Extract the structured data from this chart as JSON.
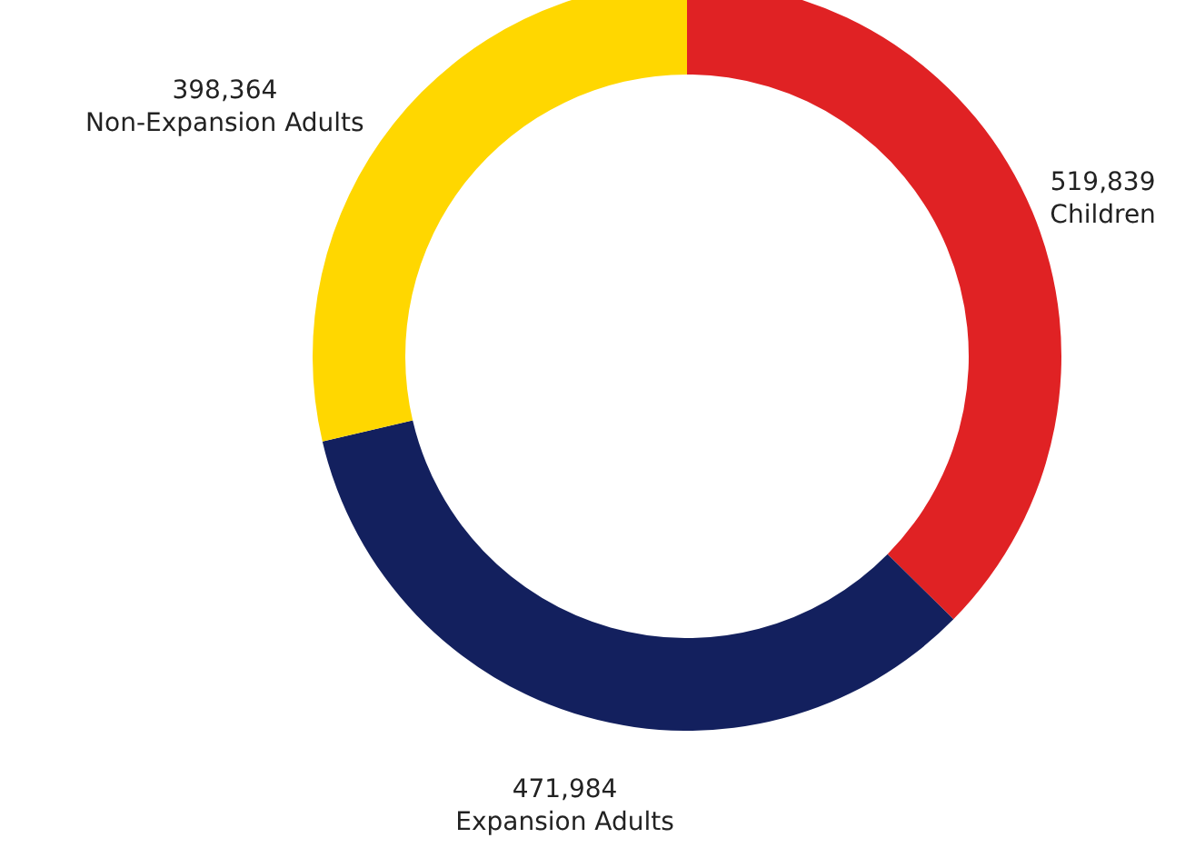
{
  "chart_data": {
    "type": "donut",
    "categories": [
      "Children",
      "Expansion Adults",
      "Non-Expansion Adults"
    ],
    "values": [
      519839,
      471984,
      398364
    ],
    "colors": [
      "#e02224",
      "#13205e",
      "#ffd700"
    ],
    "value_labels": [
      "519,839",
      "471,984",
      "398,364"
    ]
  }
}
